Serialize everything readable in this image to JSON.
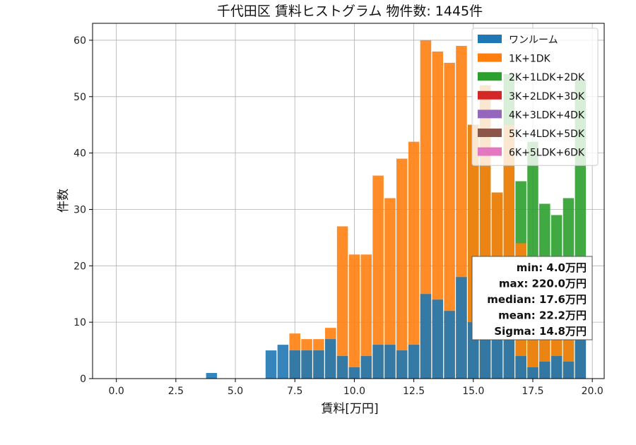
{
  "chart_data": {
    "type": "bar",
    "stacked": true,
    "title": "千代田区 賃料ヒストグラム  物件数: 1445件",
    "xlabel": "賃料[万円]",
    "ylabel": "件数",
    "xlim": [
      -1.0,
      20.5
    ],
    "ylim": [
      0,
      63
    ],
    "xticks": [
      0.0,
      2.5,
      5.0,
      7.5,
      10.0,
      12.5,
      15.0,
      17.5,
      20.0
    ],
    "xtick_labels": [
      "0.0",
      "2.5",
      "5.0",
      "7.5",
      "10.0",
      "12.5",
      "15.0",
      "17.5",
      "20.0"
    ],
    "yticks": [
      0,
      10,
      20,
      30,
      40,
      50,
      60
    ],
    "ytick_labels": [
      "0",
      "10",
      "20",
      "30",
      "40",
      "50",
      "60"
    ],
    "grid": true,
    "legend_position": "top-right",
    "bin_width": 0.5,
    "bin_centers": [
      4.0,
      6.5,
      7.0,
      7.5,
      8.0,
      8.5,
      9.0,
      9.5,
      10.0,
      10.5,
      11.0,
      11.5,
      12.0,
      12.5,
      13.0,
      13.5,
      14.0,
      14.5,
      15.0,
      15.5,
      16.0,
      16.5,
      17.0,
      17.5,
      18.0,
      18.5,
      19.0,
      19.5
    ],
    "series": [
      {
        "name": "ワンルーム",
        "color": "#1f77b4",
        "values": [
          1,
          5,
          6,
          5,
          5,
          5,
          7,
          4,
          2,
          4,
          6,
          6,
          5,
          6,
          15,
          14,
          12,
          18,
          10,
          8,
          8,
          8,
          4,
          2,
          3,
          4,
          3,
          10
        ]
      },
      {
        "name": "1K+1DK",
        "color": "#ff7f0e",
        "values": [
          0,
          0,
          0,
          8,
          7,
          7,
          9,
          27,
          22,
          22,
          36,
          32,
          39,
          42,
          60,
          58,
          56,
          59,
          45,
          52,
          33,
          45,
          24,
          20,
          8,
          8,
          8,
          8
        ]
      },
      {
        "name": "2K+1LDK+2DK",
        "color": "#2ca02c",
        "values": [
          0,
          0,
          0,
          0,
          0,
          0,
          0,
          0,
          0,
          0,
          0,
          0,
          0,
          0,
          0,
          0,
          0,
          0,
          45,
          52,
          33,
          54,
          35,
          42,
          31,
          29,
          32,
          53
        ]
      },
      {
        "name": "3K+2LDK+3DK",
        "color": "#d62728",
        "values": []
      },
      {
        "name": "4K+3LDK+4DK",
        "color": "#9467bd",
        "values": []
      },
      {
        "name": "5K+4LDK+5DK",
        "color": "#8c564b",
        "values": []
      },
      {
        "name": "6K+5LDK+6DK",
        "color": "#e377c2",
        "values": []
      }
    ],
    "stats": [
      "min: 4.0万円",
      "max: 220.0万円",
      "median: 17.6万円",
      "mean: 22.2万円",
      "Sigma: 14.8万円"
    ]
  }
}
